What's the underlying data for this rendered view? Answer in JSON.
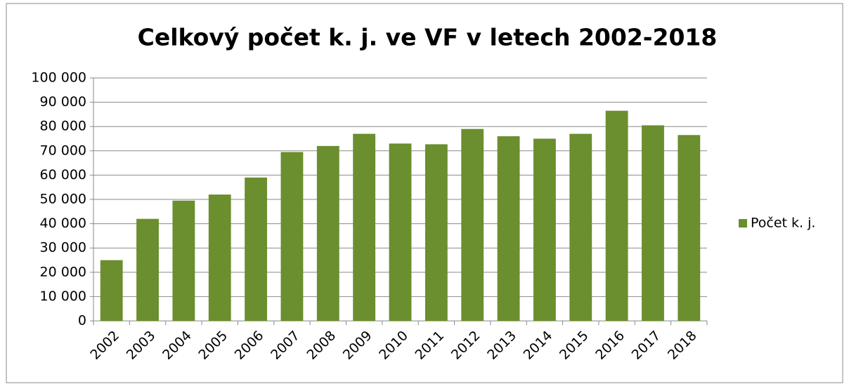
{
  "chart_data": {
    "type": "bar",
    "title": "Celkový počet k. j. ve VF v letech 2002-2018",
    "categories": [
      "2002",
      "2003",
      "2004",
      "2005",
      "2006",
      "2007",
      "2008",
      "2009",
      "2010",
      "2011",
      "2012",
      "2013",
      "2014",
      "2015",
      "2016",
      "2017",
      "2018"
    ],
    "series": [
      {
        "name": "Počet k. j.",
        "color": "#6b8e2e",
        "values": [
          25000,
          42000,
          49500,
          52000,
          59000,
          69500,
          72000,
          77000,
          73000,
          72700,
          79000,
          76000,
          75000,
          77000,
          86500,
          80500,
          76500
        ]
      }
    ],
    "ylim": [
      0,
      100000
    ],
    "yticks": [
      0,
      {
        "value": 10000,
        "label": "10 000"
      },
      {
        "value": 20000,
        "label": "20 000"
      },
      {
        "value": 30000,
        "label": "30 000"
      },
      {
        "value": 40000,
        "label": "40 000"
      },
      {
        "value": 50000,
        "label": "50 000"
      },
      {
        "value": 60000,
        "label": "60 000"
      },
      {
        "value": 70000,
        "label": "70 000"
      },
      {
        "value": 80000,
        "label": "80 000"
      },
      {
        "value": 90000,
        "label": "90 000"
      },
      {
        "value": 100000,
        "label": "100 000"
      }
    ],
    "grid": true,
    "legend": "right"
  }
}
